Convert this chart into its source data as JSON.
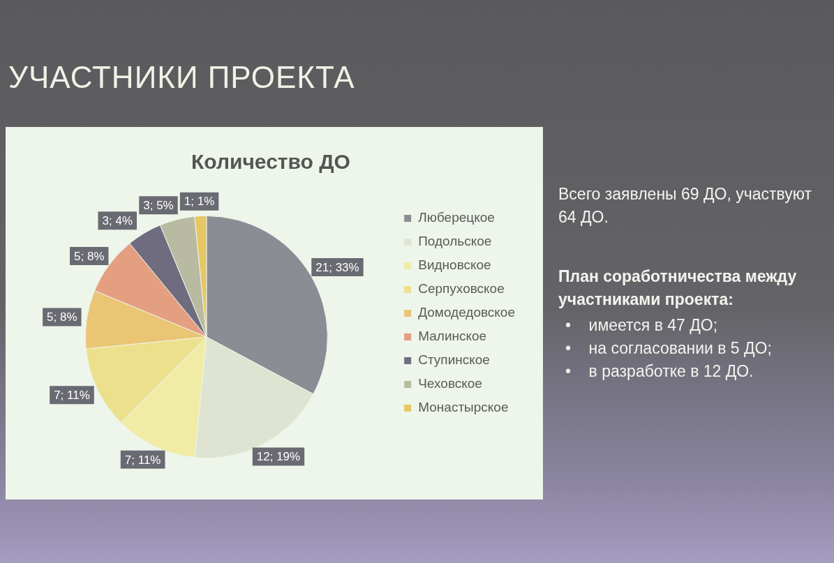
{
  "chart_data": {
    "type": "pie",
    "title": "УЧАСТНИКИ ПРОЕКТА",
    "subtitle": "Количество ДО",
    "categories": [
      "Люберецкое",
      "Подольское",
      "Видновское",
      "Серпуховское",
      "Домодедовское",
      "Малинское",
      "Ступинское",
      "Чеховское",
      "Монастырское"
    ],
    "values": [
      21,
      12,
      7,
      7,
      5,
      5,
      3,
      3,
      1
    ],
    "colors": [
      "#8c8c94",
      "#dfe4d2",
      "#f0eca6",
      "#ede08c",
      "#e9c574",
      "#e49e80",
      "#6f6c80",
      "#b9baa2",
      "#e6c764"
    ],
    "value_labels": [
      "21; 33%",
      "12; 19%",
      "7; 11%",
      "7; 11%",
      "5; 8%",
      "5; 8%",
      "3; 4%",
      "3; 5%",
      "1; 1%"
    ],
    "legend": "right",
    "annotations": [
      "Всего заявлены 69 ДО, участвуют 64 ДО.",
      "План соработничества между участниками проекта:",
      "•    имеется в 47 ДО;",
      "•    на согласовании в 5 ДО;",
      "•    в разработке в 12 ДО."
    ]
  }
}
